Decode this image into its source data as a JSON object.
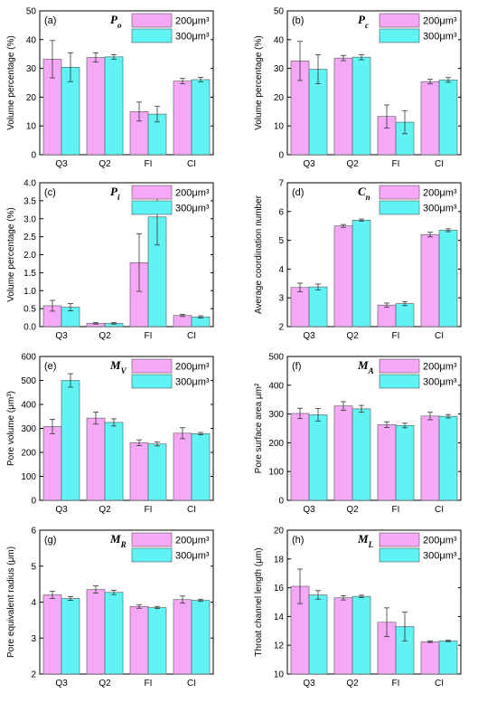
{
  "figure": {
    "colors": {
      "s200": "#f5a8f5",
      "s300": "#5ff3f3",
      "err": "#333333",
      "axis": "#000000"
    },
    "legend": {
      "s200": "200μm³",
      "s300": "300μm³"
    }
  },
  "chart_data": [
    {
      "type": "bar",
      "panel": "(a)",
      "title": "Pₒ",
      "title_main": "P",
      "title_sub": "o",
      "ylabel": "Volume percentage (%)",
      "categories": [
        "Q3",
        "Q2",
        "FI",
        "CI"
      ],
      "ylim": [
        0,
        50
      ],
      "yticks": [
        0,
        10,
        20,
        30,
        40,
        50
      ],
      "series": [
        {
          "name": "200μm³",
          "values": [
            33.2,
            33.8,
            15.0,
            25.6
          ],
          "errors": [
            6.5,
            1.6,
            3.3,
            0.9
          ]
        },
        {
          "name": "300μm³",
          "values": [
            30.4,
            34.0,
            14.1,
            26.1
          ],
          "errors": [
            5.0,
            0.8,
            2.7,
            0.8
          ]
        }
      ]
    },
    {
      "type": "bar",
      "panel": "(b)",
      "title": "Pc",
      "title_main": "P",
      "title_sub": "c",
      "ylabel": "Volume percentage (%)",
      "categories": [
        "Q3",
        "Q2",
        "FI",
        "CI"
      ],
      "ylim": [
        0,
        50
      ],
      "yticks": [
        0,
        10,
        20,
        30,
        40,
        50
      ],
      "series": [
        {
          "name": "200μm³",
          "values": [
            32.6,
            33.6,
            13.3,
            25.4
          ],
          "errors": [
            6.8,
            0.9,
            4.0,
            0.8
          ]
        },
        {
          "name": "300μm³",
          "values": [
            29.7,
            33.9,
            11.3,
            26.0
          ],
          "errors": [
            5.0,
            0.9,
            4.0,
            0.8
          ]
        }
      ]
    },
    {
      "type": "bar",
      "panel": "(c)",
      "title": "Pi",
      "title_main": "P",
      "title_sub": "i",
      "ylabel": "Volume percentage (%)",
      "categories": [
        "Q3",
        "Q2",
        "FI",
        "CI"
      ],
      "ylim": [
        0,
        4.0
      ],
      "yticks": [
        0,
        0.5,
        1.0,
        1.5,
        2.0,
        2.5,
        3.0,
        3.5,
        4.0
      ],
      "series": [
        {
          "name": "200μm³",
          "values": [
            0.58,
            0.09,
            1.78,
            0.31
          ],
          "errors": [
            0.15,
            0.02,
            0.8,
            0.03
          ]
        },
        {
          "name": "300μm³",
          "values": [
            0.54,
            0.09,
            3.05,
            0.27
          ],
          "errors": [
            0.1,
            0.02,
            0.78,
            0.03
          ]
        }
      ]
    },
    {
      "type": "bar",
      "panel": "(d)",
      "title": "Cn",
      "title_main": "C",
      "title_sub": "n",
      "ylabel": "Average coordination number",
      "categories": [
        "Q3",
        "Q2",
        "FI",
        "CI"
      ],
      "ylim": [
        2,
        7
      ],
      "yticks": [
        2,
        3,
        4,
        5,
        6,
        7
      ],
      "series": [
        {
          "name": "200μm³",
          "values": [
            3.36,
            5.5,
            2.75,
            5.2
          ],
          "errors": [
            0.15,
            0.05,
            0.07,
            0.08
          ]
        },
        {
          "name": "300μm³",
          "values": [
            3.38,
            5.7,
            2.8,
            5.35
          ],
          "errors": [
            0.1,
            0.04,
            0.07,
            0.05
          ]
        }
      ]
    },
    {
      "type": "bar",
      "panel": "(e)",
      "title": "MV",
      "title_main": "M",
      "title_sub": "V",
      "ylabel": "Pore volume (μm³)",
      "categories": [
        "Q3",
        "Q2",
        "FI",
        "CI"
      ],
      "ylim": [
        0,
        600
      ],
      "yticks": [
        0,
        100,
        200,
        300,
        400,
        500,
        600
      ],
      "series": [
        {
          "name": "200μm³",
          "values": [
            308,
            343,
            240,
            280
          ],
          "errors": [
            30,
            25,
            12,
            23
          ]
        },
        {
          "name": "300μm³",
          "values": [
            500,
            325,
            235,
            278
          ],
          "errors": [
            28,
            15,
            8,
            5
          ]
        }
      ]
    },
    {
      "type": "bar",
      "panel": "(f)",
      "title": "MA",
      "title_main": "M",
      "title_sub": "A",
      "ylabel": "Pore surface area μm²",
      "categories": [
        "Q3",
        "Q2",
        "FI",
        "CI"
      ],
      "ylim": [
        0,
        500
      ],
      "yticks": [
        0,
        100,
        200,
        300,
        400,
        500
      ],
      "series": [
        {
          "name": "200μm³",
          "values": [
            302,
            328,
            263,
            293
          ],
          "errors": [
            18,
            15,
            10,
            13
          ]
        },
        {
          "name": "300μm³",
          "values": [
            297,
            318,
            260,
            292
          ],
          "errors": [
            22,
            12,
            8,
            6
          ]
        }
      ]
    },
    {
      "type": "bar",
      "panel": "(g)",
      "title": "MR",
      "title_main": "M",
      "title_sub": "R",
      "ylabel": "Pore equivalent radius (μm)",
      "categories": [
        "Q3",
        "Q2",
        "FI",
        "CI"
      ],
      "ylim": [
        2,
        6
      ],
      "yticks": [
        2,
        3,
        4,
        5,
        6
      ],
      "series": [
        {
          "name": "200μm³",
          "values": [
            4.2,
            4.35,
            3.88,
            4.07
          ],
          "errors": [
            0.1,
            0.1,
            0.05,
            0.1
          ]
        },
        {
          "name": "300μm³",
          "values": [
            4.1,
            4.27,
            3.85,
            4.05
          ],
          "errors": [
            0.05,
            0.06,
            0.03,
            0.03
          ]
        }
      ]
    },
    {
      "type": "bar",
      "panel": "(h)",
      "title": "ML",
      "title_main": "M",
      "title_sub": "L",
      "ylabel": "Throat channel length (μm)",
      "categories": [
        "Q3",
        "Q2",
        "FI",
        "CI"
      ],
      "ylim": [
        10,
        20
      ],
      "yticks": [
        10,
        12,
        14,
        16,
        18,
        20
      ],
      "series": [
        {
          "name": "200μm³",
          "values": [
            16.1,
            15.3,
            13.6,
            12.25
          ],
          "errors": [
            1.2,
            0.15,
            1.0,
            0.06
          ]
        },
        {
          "name": "300μm³",
          "values": [
            15.5,
            15.4,
            13.3,
            12.3
          ],
          "errors": [
            0.3,
            0.08,
            1.0,
            0.05
          ]
        }
      ]
    }
  ]
}
